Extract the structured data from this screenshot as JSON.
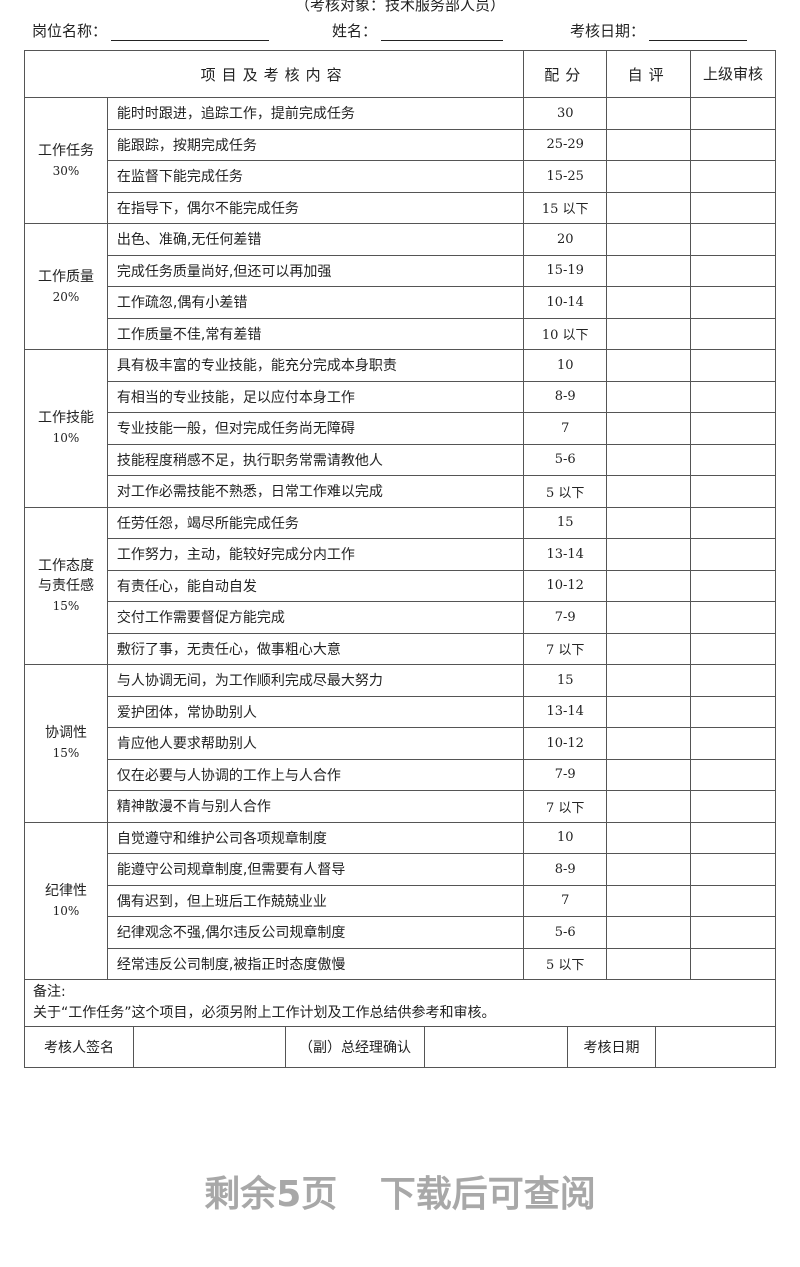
{
  "subtitle": "（考核对象：技术服务部人员）",
  "fields": {
    "position": "岗位名称：",
    "name": "姓名：",
    "date": "考核日期："
  },
  "headers": {
    "content": "项目及考核内容",
    "score": "配分",
    "self": "自评",
    "superior": "上级审核"
  },
  "groups": [
    {
      "name": "工作任务",
      "weight": "30%",
      "items": [
        [
          "能时时跟进，追踪工作，提前完成任务",
          "30"
        ],
        [
          "能跟踪，按期完成任务",
          "25-29"
        ],
        [
          "在监督下能完成任务",
          "15-25"
        ],
        [
          "在指导下，偶尔不能完成任务",
          "15 以下"
        ]
      ]
    },
    {
      "name": "工作质量",
      "weight": "20%",
      "items": [
        [
          "出色、准确,无任何差错",
          "20"
        ],
        [
          "完成任务质量尚好,但还可以再加强",
          "15-19"
        ],
        [
          "工作疏忽,偶有小差错",
          "10-14"
        ],
        [
          "工作质量不佳,常有差错",
          "10 以下"
        ]
      ]
    },
    {
      "name": "工作技能",
      "weight": "10%",
      "items": [
        [
          "具有极丰富的专业技能，能充分完成本身职责",
          "10"
        ],
        [
          "有相当的专业技能，足以应付本身工作",
          "8-9"
        ],
        [
          "专业技能一般，但对完成任务尚无障碍",
          "7"
        ],
        [
          "技能程度稍感不足，执行职务常需请教他人",
          "5-6"
        ],
        [
          "对工作必需技能不熟悉，日常工作难以完成",
          "5 以下"
        ]
      ]
    },
    {
      "name": "工作态度与责任感",
      "weight": "15%",
      "items": [
        [
          "任劳任怨，竭尽所能完成任务",
          "15"
        ],
        [
          "工作努力，主动，能较好完成分内工作",
          "13-14"
        ],
        [
          "有责任心，能自动自发",
          "10-12"
        ],
        [
          "交付工作需要督促方能完成",
          "7-9"
        ],
        [
          "敷衍了事，无责任心，做事粗心大意",
          "7 以下"
        ]
      ]
    },
    {
      "name": "协调性",
      "weight": "15%",
      "items": [
        [
          "与人协调无间，为工作顺利完成尽最大努力",
          "15"
        ],
        [
          "爱护团体，常协助别人",
          "13-14"
        ],
        [
          "肯应他人要求帮助别人",
          "10-12"
        ],
        [
          "仅在必要与人协调的工作上与人合作",
          "7-9"
        ],
        [
          "精神散漫不肯与别人合作",
          "7 以下"
        ]
      ]
    },
    {
      "name": "纪律性",
      "weight": "10%",
      "items": [
        [
          "自觉遵守和维护公司各项规章制度",
          "10"
        ],
        [
          "能遵守公司规章制度,但需要有人督导",
          "8-9"
        ],
        [
          "偶有迟到，但上班后工作兢兢业业",
          "7"
        ],
        [
          "纪律观念不强,偶尔违反公司规章制度",
          "5-6"
        ],
        [
          "经常违反公司制度,被指正时态度傲慢",
          "5 以下"
        ]
      ]
    }
  ],
  "notes": {
    "label": "备注:",
    "text": "关于“工作任务”这个项目，必须另附上工作计划及工作总结供参考和审核。"
  },
  "signature": {
    "reviewer": "考核人签名",
    "manager": "（副）总经理确认",
    "date": "考核日期"
  },
  "footer": "剩余5页 下载后可查阅"
}
